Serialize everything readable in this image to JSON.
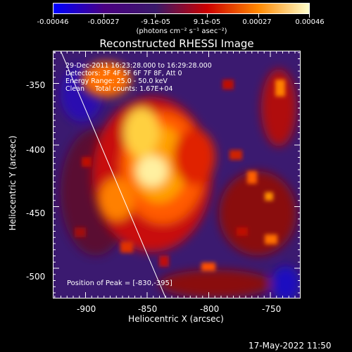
{
  "colorbar": {
    "tick_labels": [
      "-0.00046",
      "-0.00027",
      "-9.1e-05",
      "9.1e-05",
      "0.00027",
      "0.00046"
    ],
    "units": "(photons cm⁻² s⁻¹ asec⁻²)",
    "colormap": [
      "#0000ff",
      "#4b0082",
      "#3a1a6a",
      "#cc0000",
      "#ff8800",
      "#ffffcc"
    ]
  },
  "title": "Reconstructed RHESSI Image",
  "info": {
    "time_range": "29-Dec-2011 16:23:28.000 to 16:29:28.000",
    "detectors": "Detectors: 3F 4F 5F 6F 7F 8F, Att 0",
    "energy_range": "Energy Range: 25.0 - 50.0 keV",
    "method_counts": "Clean     Total counts: 1.67E+04"
  },
  "peak": "Position of Peak = [-830,-395]",
  "x_axis": {
    "label": "Heliocentric X (arcsec)",
    "ticks": [
      "-900",
      "-850",
      "-800",
      "-750"
    ],
    "range": [
      -926,
      -726
    ]
  },
  "y_axis": {
    "label": "Heliocentric Y (arcsec)",
    "ticks": [
      "-350",
      "-400",
      "-450",
      "-500"
    ],
    "range": [
      -524,
      -324
    ]
  },
  "limb_line": {
    "x1": -920,
    "y1": -324,
    "x2": -835,
    "y2": -524
  },
  "datestamp": "17-May-2022 11:50"
}
